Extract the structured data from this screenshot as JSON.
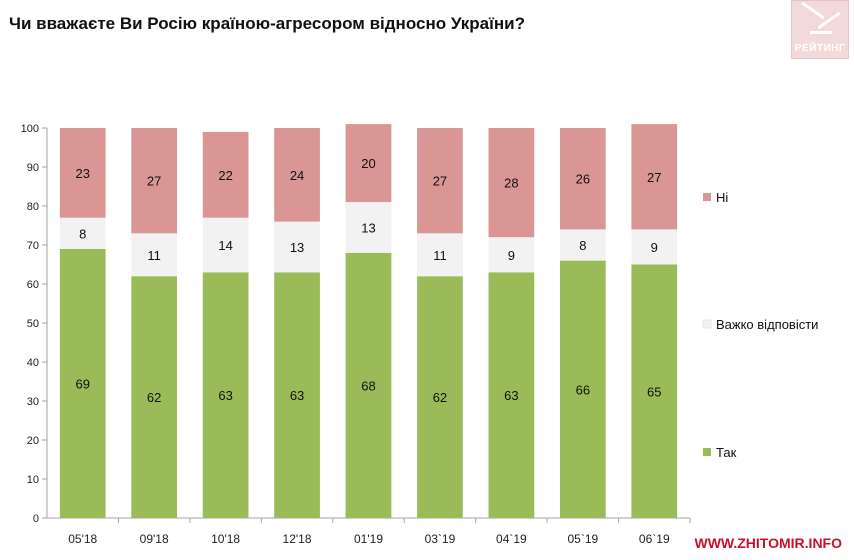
{
  "title": "Чи вважаєте Ви Росію країною-агресором відносно України?",
  "logo_text": "РЕЙТИНГ",
  "watermark": "WWW.ZHITOMIR.INFO",
  "chart_data": {
    "type": "bar",
    "stacked": true,
    "title": "Чи вважаєте Ви Росію країною-агресором відносно України?",
    "categories": [
      "05'18",
      "09'18",
      "10'18",
      "12'18",
      "01'19",
      "03`19",
      "04`19",
      "05`19",
      "06`19"
    ],
    "series": [
      {
        "name": "Так",
        "color": "#9bbb59",
        "values": [
          69,
          62,
          63,
          63,
          68,
          62,
          63,
          66,
          65
        ]
      },
      {
        "name": "Важко відповісти",
        "color": "#f2f2f2",
        "values": [
          8,
          11,
          14,
          13,
          13,
          11,
          9,
          8,
          9
        ]
      },
      {
        "name": "Ні",
        "color": "#d99694",
        "values": [
          23,
          27,
          22,
          24,
          20,
          27,
          28,
          26,
          27
        ]
      }
    ],
    "ylim": [
      0,
      100
    ],
    "yticks": [
      0,
      10,
      20,
      30,
      40,
      50,
      60,
      70,
      80,
      90,
      100
    ],
    "xlabel": "",
    "ylabel": "",
    "legend": [
      "Ні",
      "Важко відповісти",
      "Так"
    ],
    "legend_position": "right"
  }
}
